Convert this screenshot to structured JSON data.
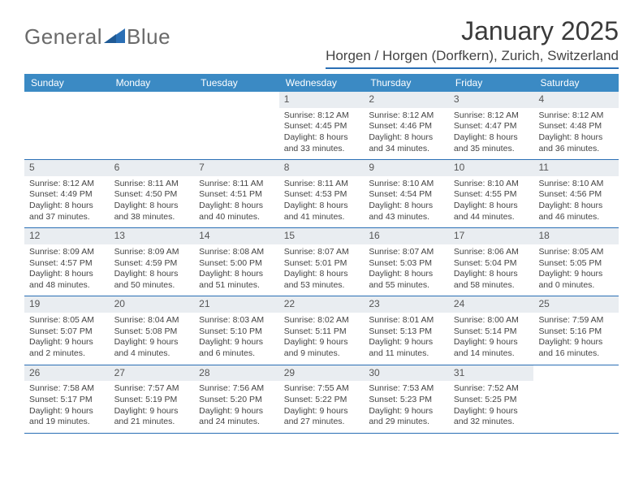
{
  "brand": {
    "part1": "General",
    "part2": "Blue"
  },
  "title": "January 2025",
  "location": "Horgen / Horgen (Dorfkern), Zurich, Switzerland",
  "day_headers": [
    "Sunday",
    "Monday",
    "Tuesday",
    "Wednesday",
    "Thursday",
    "Friday",
    "Saturday"
  ],
  "colors": {
    "header_bar": "#3b8ac4",
    "accent": "#2a6fb5",
    "daynum_bg": "#e9edf1",
    "text": "#444444"
  },
  "weeks": [
    [
      {
        "empty": true
      },
      {
        "empty": true
      },
      {
        "empty": true
      },
      {
        "day": "1",
        "sunrise": "Sunrise: 8:12 AM",
        "sunset": "Sunset: 4:45 PM",
        "dl1": "Daylight: 8 hours",
        "dl2": "and 33 minutes."
      },
      {
        "day": "2",
        "sunrise": "Sunrise: 8:12 AM",
        "sunset": "Sunset: 4:46 PM",
        "dl1": "Daylight: 8 hours",
        "dl2": "and 34 minutes."
      },
      {
        "day": "3",
        "sunrise": "Sunrise: 8:12 AM",
        "sunset": "Sunset: 4:47 PM",
        "dl1": "Daylight: 8 hours",
        "dl2": "and 35 minutes."
      },
      {
        "day": "4",
        "sunrise": "Sunrise: 8:12 AM",
        "sunset": "Sunset: 4:48 PM",
        "dl1": "Daylight: 8 hours",
        "dl2": "and 36 minutes."
      }
    ],
    [
      {
        "day": "5",
        "sunrise": "Sunrise: 8:12 AM",
        "sunset": "Sunset: 4:49 PM",
        "dl1": "Daylight: 8 hours",
        "dl2": "and 37 minutes."
      },
      {
        "day": "6",
        "sunrise": "Sunrise: 8:11 AM",
        "sunset": "Sunset: 4:50 PM",
        "dl1": "Daylight: 8 hours",
        "dl2": "and 38 minutes."
      },
      {
        "day": "7",
        "sunrise": "Sunrise: 8:11 AM",
        "sunset": "Sunset: 4:51 PM",
        "dl1": "Daylight: 8 hours",
        "dl2": "and 40 minutes."
      },
      {
        "day": "8",
        "sunrise": "Sunrise: 8:11 AM",
        "sunset": "Sunset: 4:53 PM",
        "dl1": "Daylight: 8 hours",
        "dl2": "and 41 minutes."
      },
      {
        "day": "9",
        "sunrise": "Sunrise: 8:10 AM",
        "sunset": "Sunset: 4:54 PM",
        "dl1": "Daylight: 8 hours",
        "dl2": "and 43 minutes."
      },
      {
        "day": "10",
        "sunrise": "Sunrise: 8:10 AM",
        "sunset": "Sunset: 4:55 PM",
        "dl1": "Daylight: 8 hours",
        "dl2": "and 44 minutes."
      },
      {
        "day": "11",
        "sunrise": "Sunrise: 8:10 AM",
        "sunset": "Sunset: 4:56 PM",
        "dl1": "Daylight: 8 hours",
        "dl2": "and 46 minutes."
      }
    ],
    [
      {
        "day": "12",
        "sunrise": "Sunrise: 8:09 AM",
        "sunset": "Sunset: 4:57 PM",
        "dl1": "Daylight: 8 hours",
        "dl2": "and 48 minutes."
      },
      {
        "day": "13",
        "sunrise": "Sunrise: 8:09 AM",
        "sunset": "Sunset: 4:59 PM",
        "dl1": "Daylight: 8 hours",
        "dl2": "and 50 minutes."
      },
      {
        "day": "14",
        "sunrise": "Sunrise: 8:08 AM",
        "sunset": "Sunset: 5:00 PM",
        "dl1": "Daylight: 8 hours",
        "dl2": "and 51 minutes."
      },
      {
        "day": "15",
        "sunrise": "Sunrise: 8:07 AM",
        "sunset": "Sunset: 5:01 PM",
        "dl1": "Daylight: 8 hours",
        "dl2": "and 53 minutes."
      },
      {
        "day": "16",
        "sunrise": "Sunrise: 8:07 AM",
        "sunset": "Sunset: 5:03 PM",
        "dl1": "Daylight: 8 hours",
        "dl2": "and 55 minutes."
      },
      {
        "day": "17",
        "sunrise": "Sunrise: 8:06 AM",
        "sunset": "Sunset: 5:04 PM",
        "dl1": "Daylight: 8 hours",
        "dl2": "and 58 minutes."
      },
      {
        "day": "18",
        "sunrise": "Sunrise: 8:05 AM",
        "sunset": "Sunset: 5:05 PM",
        "dl1": "Daylight: 9 hours",
        "dl2": "and 0 minutes."
      }
    ],
    [
      {
        "day": "19",
        "sunrise": "Sunrise: 8:05 AM",
        "sunset": "Sunset: 5:07 PM",
        "dl1": "Daylight: 9 hours",
        "dl2": "and 2 minutes."
      },
      {
        "day": "20",
        "sunrise": "Sunrise: 8:04 AM",
        "sunset": "Sunset: 5:08 PM",
        "dl1": "Daylight: 9 hours",
        "dl2": "and 4 minutes."
      },
      {
        "day": "21",
        "sunrise": "Sunrise: 8:03 AM",
        "sunset": "Sunset: 5:10 PM",
        "dl1": "Daylight: 9 hours",
        "dl2": "and 6 minutes."
      },
      {
        "day": "22",
        "sunrise": "Sunrise: 8:02 AM",
        "sunset": "Sunset: 5:11 PM",
        "dl1": "Daylight: 9 hours",
        "dl2": "and 9 minutes."
      },
      {
        "day": "23",
        "sunrise": "Sunrise: 8:01 AM",
        "sunset": "Sunset: 5:13 PM",
        "dl1": "Daylight: 9 hours",
        "dl2": "and 11 minutes."
      },
      {
        "day": "24",
        "sunrise": "Sunrise: 8:00 AM",
        "sunset": "Sunset: 5:14 PM",
        "dl1": "Daylight: 9 hours",
        "dl2": "and 14 minutes."
      },
      {
        "day": "25",
        "sunrise": "Sunrise: 7:59 AM",
        "sunset": "Sunset: 5:16 PM",
        "dl1": "Daylight: 9 hours",
        "dl2": "and 16 minutes."
      }
    ],
    [
      {
        "day": "26",
        "sunrise": "Sunrise: 7:58 AM",
        "sunset": "Sunset: 5:17 PM",
        "dl1": "Daylight: 9 hours",
        "dl2": "and 19 minutes."
      },
      {
        "day": "27",
        "sunrise": "Sunrise: 7:57 AM",
        "sunset": "Sunset: 5:19 PM",
        "dl1": "Daylight: 9 hours",
        "dl2": "and 21 minutes."
      },
      {
        "day": "28",
        "sunrise": "Sunrise: 7:56 AM",
        "sunset": "Sunset: 5:20 PM",
        "dl1": "Daylight: 9 hours",
        "dl2": "and 24 minutes."
      },
      {
        "day": "29",
        "sunrise": "Sunrise: 7:55 AM",
        "sunset": "Sunset: 5:22 PM",
        "dl1": "Daylight: 9 hours",
        "dl2": "and 27 minutes."
      },
      {
        "day": "30",
        "sunrise": "Sunrise: 7:53 AM",
        "sunset": "Sunset: 5:23 PM",
        "dl1": "Daylight: 9 hours",
        "dl2": "and 29 minutes."
      },
      {
        "day": "31",
        "sunrise": "Sunrise: 7:52 AM",
        "sunset": "Sunset: 5:25 PM",
        "dl1": "Daylight: 9 hours",
        "dl2": "and 32 minutes."
      },
      {
        "empty": true
      }
    ]
  ]
}
